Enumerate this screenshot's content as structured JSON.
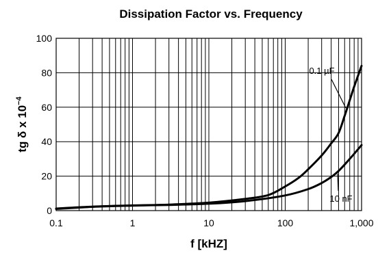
{
  "chart_data": {
    "type": "line",
    "title": "Dissipation Factor vs. Frequency",
    "xlabel": "f [kHZ]",
    "ylabel_main": "tg δ x 10",
    "ylabel_exp": "−4",
    "x_scale": "log",
    "xlim": [
      0.1,
      1000
    ],
    "ylim": [
      0,
      100
    ],
    "x_ticks": [
      0.1,
      1,
      10,
      100,
      1000
    ],
    "x_tick_labels": [
      "0.1",
      "1",
      "10",
      "100",
      "1,000"
    ],
    "y_ticks": [
      0,
      20,
      40,
      60,
      80,
      100
    ],
    "y_tick_labels": [
      "0",
      "20",
      "40",
      "60",
      "80",
      "100"
    ],
    "grid": true,
    "series": [
      {
        "name": "0.1 µF",
        "x": [
          0.1,
          0.3,
          1,
          3,
          10,
          30,
          60,
          100,
          150,
          200,
          300,
          400,
          500,
          600,
          700,
          800,
          1000
        ],
        "y": [
          1.2,
          2.3,
          3.0,
          3.5,
          4.6,
          6.8,
          9.0,
          14.0,
          19.0,
          24.0,
          32.0,
          39.0,
          45.0,
          55.0,
          64.0,
          72.0,
          84.0
        ]
      },
      {
        "name": "10 nF",
        "x": [
          0.1,
          0.3,
          1,
          3,
          10,
          30,
          100,
          200,
          300,
          400,
          500,
          700,
          1000
        ],
        "y": [
          1.0,
          2.2,
          2.9,
          3.3,
          4.0,
          5.5,
          8.8,
          12.5,
          16.0,
          19.5,
          23.0,
          30.0,
          38.0
        ]
      }
    ]
  }
}
